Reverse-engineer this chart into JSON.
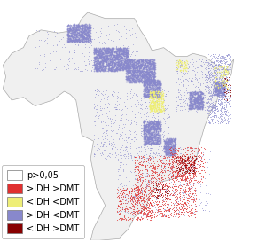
{
  "legend_items": [
    {
      "label": "p>0,05",
      "facecolor": "#FFFFFF",
      "edgecolor": "#777777"
    },
    {
      "label": ">IDH >DMT",
      "facecolor": "#E03030",
      "edgecolor": "#777777"
    },
    {
      "label": "<IDH <DMT",
      "facecolor": "#EEEE77",
      "edgecolor": "#777777"
    },
    {
      "label": ">IDH <DMT",
      "facecolor": "#8888CC",
      "edgecolor": "#777777"
    },
    {
      "label": "<IDH >DMT",
      "facecolor": "#880000",
      "edgecolor": "#777777"
    }
  ],
  "map_no_sig": "#F0F0F0",
  "map_border": "#AAAAAA",
  "map_hh": "#E03030",
  "map_ll": "#EEEE77",
  "map_hl": "#8888CC",
  "map_lh": "#880000",
  "state_border": "#999999",
  "legend_fontsize": 7.0,
  "figsize": [
    3.0,
    2.82
  ],
  "dpi": 100,
  "xlim": [
    -74.0,
    -28.5
  ],
  "ylim": [
    -34.0,
    5.5
  ]
}
